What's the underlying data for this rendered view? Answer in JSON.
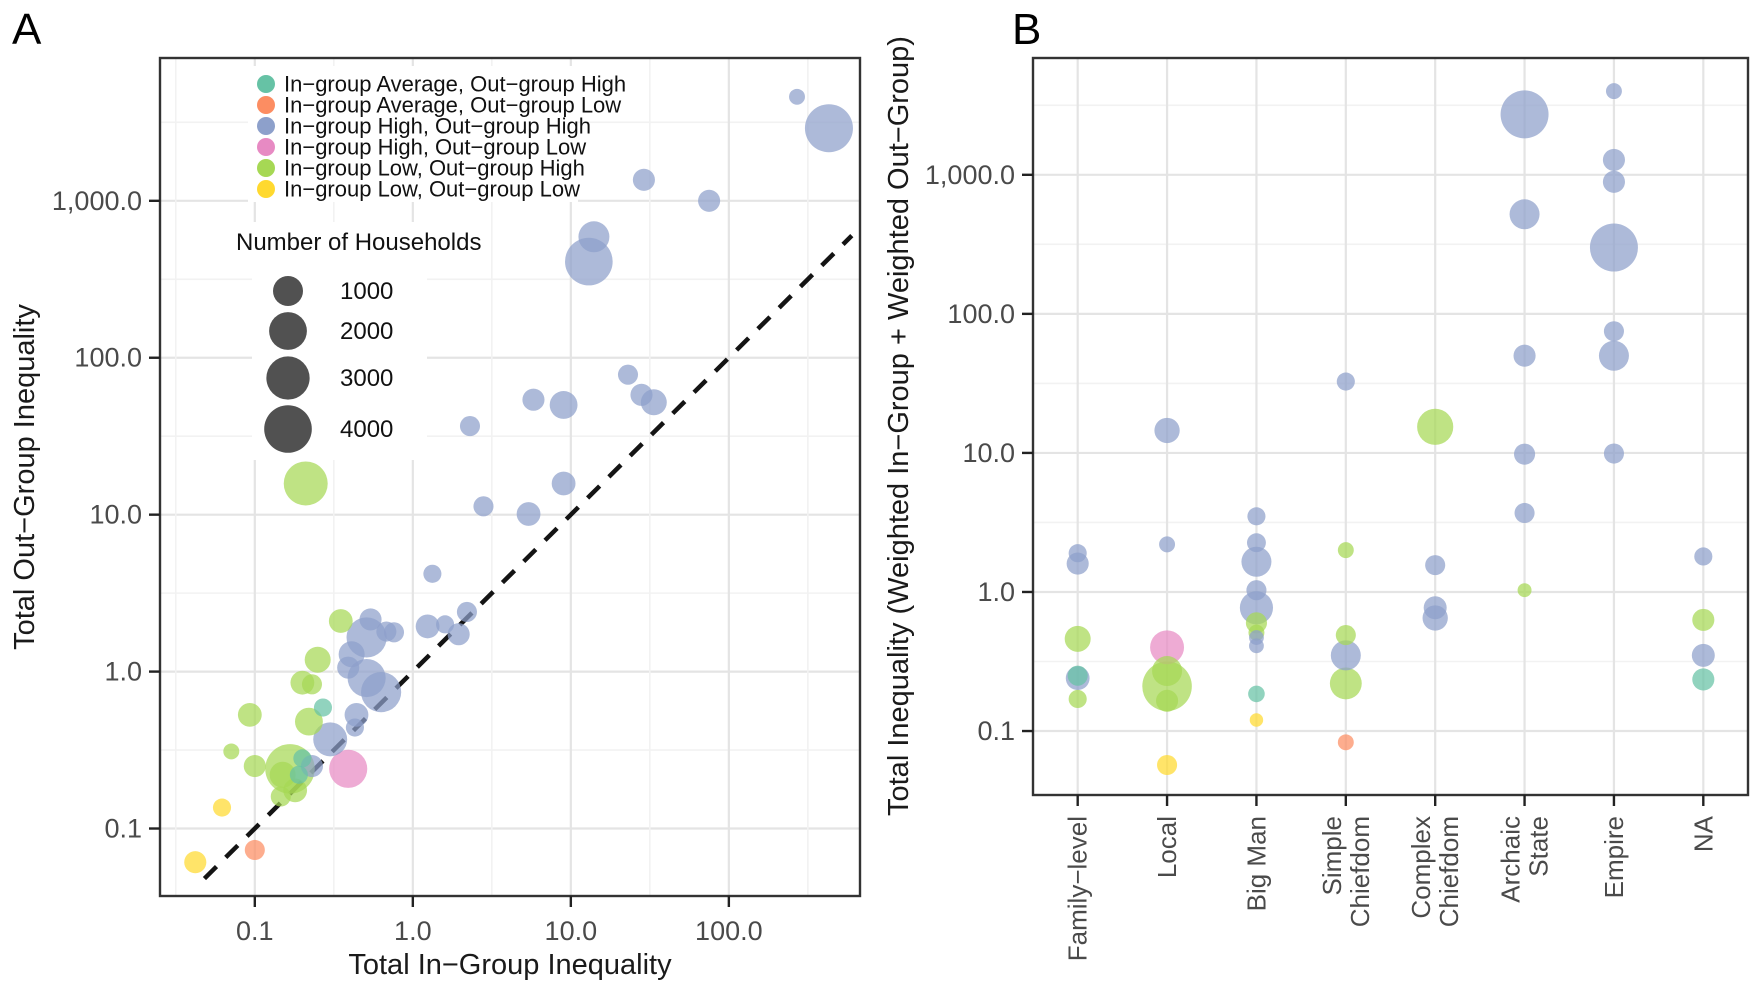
{
  "figure": {
    "panel_a_label": "A",
    "panel_b_label": "B"
  },
  "colors": {
    "background": "#ffffff",
    "panel_border": "#333333",
    "grid_major": "#e4e4e4",
    "grid_minor": "#f2f2f2",
    "axis_text": "#4a4a4a",
    "identity_line": "#141414",
    "size_legend_dot": "#424242",
    "groups": {
      "AH": "#66C2A5",
      "AL": "#FC8D62",
      "HH": "#8DA0CB",
      "HL": "#E78AC3",
      "LH": "#A6D854",
      "LL": "#FFD92F"
    }
  },
  "legend": {
    "entries": [
      {
        "key": "AH",
        "label": "In−group Average, Out−group High"
      },
      {
        "key": "AL",
        "label": "In−group Average, Out−group Low"
      },
      {
        "key": "HH",
        "label": "In−group High, Out−group High"
      },
      {
        "key": "HL",
        "label": "In−group High, Out−group Low"
      },
      {
        "key": "LH",
        "label": "In−group Low, Out−group High"
      },
      {
        "key": "LL",
        "label": "In−group Low, Out−group Low"
      }
    ]
  },
  "size_legend": {
    "title": "Number of Households",
    "values": [
      1000,
      2000,
      3000,
      4000
    ],
    "labels": [
      "1000",
      "2000",
      "3000",
      "4000"
    ]
  },
  "chart_data": [
    {
      "type": "scatter",
      "name": "panel-A",
      "xlabel": "Total In−Group Inequality",
      "ylabel": "Total Out−Group Inequality",
      "xscale": "log",
      "yscale": "log",
      "xlim": [
        0.025,
        680
      ],
      "ylim": [
        0.037,
        8100
      ],
      "xticks": {
        "values": [
          0.1,
          1,
          10,
          100
        ],
        "labels": [
          "0.1",
          "1.0",
          "10.0",
          "100.0"
        ]
      },
      "yticks": {
        "values": [
          0.1,
          1,
          10,
          100,
          1000
        ],
        "labels": [
          "0.1",
          "1.0",
          "10.0",
          "100.0",
          "1,000.0"
        ]
      },
      "identity_line": {
        "shown": true,
        "style": "dashed",
        "from": 0.048,
        "to": 600
      },
      "grid": "major+minor",
      "legend_position": "inside-top-left",
      "points": [
        {
          "x": 29,
          "y": 1360,
          "n": 400,
          "g": "HH"
        },
        {
          "x": 75,
          "y": 1000,
          "n": 400,
          "g": "HH"
        },
        {
          "x": 270,
          "y": 4600,
          "n": 150,
          "g": "HH"
        },
        {
          "x": 430,
          "y": 2900,
          "n": 4100,
          "g": "HH"
        },
        {
          "x": 14,
          "y": 590,
          "n": 1100,
          "g": "HH"
        },
        {
          "x": 13,
          "y": 410,
          "n": 4000,
          "g": "HH"
        },
        {
          "x": 23,
          "y": 78,
          "n": 300,
          "g": "HH"
        },
        {
          "x": 28,
          "y": 58,
          "n": 400,
          "g": "HH"
        },
        {
          "x": 33.5,
          "y": 52,
          "n": 650,
          "g": "HH"
        },
        {
          "x": 5.8,
          "y": 54,
          "n": 400,
          "g": "HH"
        },
        {
          "x": 9,
          "y": 50,
          "n": 800,
          "g": "HH"
        },
        {
          "x": 9,
          "y": 15.8,
          "n": 500,
          "g": "HH"
        },
        {
          "x": 5.4,
          "y": 10.1,
          "n": 500,
          "g": "HH"
        },
        {
          "x": 2.8,
          "y": 11.3,
          "n": 300,
          "g": "HH"
        },
        {
          "x": 2.3,
          "y": 36.7,
          "n": 300,
          "g": "HH"
        },
        {
          "x": 1.33,
          "y": 4.2,
          "n": 220,
          "g": "HH"
        },
        {
          "x": 2.2,
          "y": 2.4,
          "n": 300,
          "g": "HH"
        },
        {
          "x": 1.6,
          "y": 2.0,
          "n": 220,
          "g": "HH"
        },
        {
          "x": 1.95,
          "y": 1.73,
          "n": 400,
          "g": "HH"
        },
        {
          "x": 1.24,
          "y": 1.94,
          "n": 500,
          "g": "HH"
        },
        {
          "x": 0.54,
          "y": 2.15,
          "n": 400,
          "g": "HH"
        },
        {
          "x": 0.68,
          "y": 1.8,
          "n": 300,
          "g": "HH"
        },
        {
          "x": 0.76,
          "y": 1.78,
          "n": 300,
          "g": "HH"
        },
        {
          "x": 0.51,
          "y": 1.65,
          "n": 2400,
          "g": "HH"
        },
        {
          "x": 0.41,
          "y": 1.29,
          "n": 650,
          "g": "HH"
        },
        {
          "x": 0.39,
          "y": 1.06,
          "n": 400,
          "g": "HH"
        },
        {
          "x": 0.51,
          "y": 0.91,
          "n": 2050,
          "g": "HH"
        },
        {
          "x": 0.63,
          "y": 0.74,
          "n": 2400,
          "g": "HH"
        },
        {
          "x": 0.44,
          "y": 0.53,
          "n": 500,
          "g": "HH"
        },
        {
          "x": 0.43,
          "y": 0.44,
          "n": 220,
          "g": "HH"
        },
        {
          "x": 0.3,
          "y": 0.37,
          "n": 1450,
          "g": "HH"
        },
        {
          "x": 0.23,
          "y": 0.25,
          "n": 400,
          "g": "HH"
        },
        {
          "x": 0.21,
          "y": 15.8,
          "n": 3150,
          "g": "LH"
        },
        {
          "x": 0.35,
          "y": 2.1,
          "n": 500,
          "g": "LH"
        },
        {
          "x": 0.25,
          "y": 1.19,
          "n": 650,
          "g": "LH"
        },
        {
          "x": 0.2,
          "y": 0.85,
          "n": 500,
          "g": "LH"
        },
        {
          "x": 0.23,
          "y": 0.83,
          "n": 300,
          "g": "LH"
        },
        {
          "x": 0.093,
          "y": 0.53,
          "n": 500,
          "g": "LH"
        },
        {
          "x": 0.22,
          "y": 0.48,
          "n": 800,
          "g": "LH"
        },
        {
          "x": 0.071,
          "y": 0.31,
          "n": 150,
          "g": "LH"
        },
        {
          "x": 0.1,
          "y": 0.25,
          "n": 400,
          "g": "LH"
        },
        {
          "x": 0.167,
          "y": 0.24,
          "n": 4500,
          "g": "LH"
        },
        {
          "x": 0.15,
          "y": 0.22,
          "n": 650,
          "g": "LH"
        },
        {
          "x": 0.18,
          "y": 0.175,
          "n": 500,
          "g": "LH"
        },
        {
          "x": 0.146,
          "y": 0.16,
          "n": 300,
          "g": "LH"
        },
        {
          "x": 0.27,
          "y": 0.59,
          "n": 220,
          "g": "AH"
        },
        {
          "x": 0.2,
          "y": 0.28,
          "n": 220,
          "g": "AH"
        },
        {
          "x": 0.19,
          "y": 0.22,
          "n": 220,
          "g": "AH"
        },
        {
          "x": 0.39,
          "y": 0.24,
          "n": 2050,
          "g": "HL"
        },
        {
          "x": 0.042,
          "y": 0.061,
          "n": 400,
          "g": "LL"
        },
        {
          "x": 0.062,
          "y": 0.136,
          "n": 220,
          "g": "LL"
        },
        {
          "x": 0.1,
          "y": 0.073,
          "n": 300,
          "g": "AL"
        }
      ]
    },
    {
      "type": "scatter-categorical",
      "name": "panel-B",
      "xlabel": "",
      "ylabel": "Total Inequality (Weighted In−Group + Weighted Out−Group)",
      "yscale": "log",
      "ylim": [
        0.035,
        6900
      ],
      "yticks": {
        "values": [
          0.1,
          1,
          10,
          100,
          1000
        ],
        "labels": [
          "0.1",
          "1.0",
          "10.0",
          "100.0",
          "1,000.0"
        ]
      },
      "categories": [
        "Family−level",
        "Local",
        "Big Man",
        "Simple Chiefdom",
        "Complex Chiefdom",
        "Archaic State",
        "Empire",
        "NA"
      ],
      "category_label_lines": [
        [
          "Family−level"
        ],
        [
          "Local"
        ],
        [
          "Big Man"
        ],
        [
          "Simple",
          "Chiefdom"
        ],
        [
          "Complex",
          "Chiefdom"
        ],
        [
          "Archaic",
          "State"
        ],
        [
          "Empire"
        ],
        [
          "NA"
        ]
      ],
      "grid": "major+minor",
      "points": [
        {
          "c": 0,
          "y": 1.9,
          "n": 220,
          "g": "HH"
        },
        {
          "c": 0,
          "y": 1.6,
          "n": 400,
          "g": "HH"
        },
        {
          "c": 0,
          "y": 0.46,
          "n": 650,
          "g": "LH"
        },
        {
          "c": 0,
          "y": 0.25,
          "n": 300,
          "g": "AH"
        },
        {
          "c": 0,
          "y": 0.24,
          "n": 500,
          "g": "HH"
        },
        {
          "c": 0,
          "y": 0.17,
          "n": 220,
          "g": "LH"
        },
        {
          "c": 1,
          "y": 14.5,
          "n": 600,
          "g": "HH"
        },
        {
          "c": 1,
          "y": 2.2,
          "n": 150,
          "g": "HH"
        },
        {
          "c": 1,
          "y": 0.4,
          "n": 1450,
          "g": "HL"
        },
        {
          "c": 1,
          "y": 0.27,
          "n": 1000,
          "g": "LH"
        },
        {
          "c": 1,
          "y": 0.21,
          "n": 4500,
          "g": "LH"
        },
        {
          "c": 1,
          "y": 0.165,
          "n": 400,
          "g": "LH"
        },
        {
          "c": 1,
          "y": 0.057,
          "n": 300,
          "g": "LL"
        },
        {
          "c": 2,
          "y": 3.5,
          "n": 220,
          "g": "HH"
        },
        {
          "c": 2,
          "y": 2.26,
          "n": 250,
          "g": "HH"
        },
        {
          "c": 2,
          "y": 1.65,
          "n": 1000,
          "g": "HH"
        },
        {
          "c": 2,
          "y": 1.03,
          "n": 300,
          "g": "HH"
        },
        {
          "c": 2,
          "y": 0.77,
          "n": 1350,
          "g": "HH"
        },
        {
          "c": 2,
          "y": 0.6,
          "n": 350,
          "g": "LH"
        },
        {
          "c": 2,
          "y": 0.51,
          "n": 150,
          "g": "LH"
        },
        {
          "c": 2,
          "y": 0.47,
          "n": 120,
          "g": "HH"
        },
        {
          "c": 2,
          "y": 0.41,
          "n": 120,
          "g": "HH"
        },
        {
          "c": 2,
          "y": 0.185,
          "n": 170,
          "g": "AH"
        },
        {
          "c": 2,
          "y": 0.12,
          "n": 90,
          "g": "LL"
        },
        {
          "c": 3,
          "y": 32.6,
          "n": 220,
          "g": "HH"
        },
        {
          "c": 3,
          "y": 2.0,
          "n": 150,
          "g": "LH"
        },
        {
          "c": 3,
          "y": 0.49,
          "n": 300,
          "g": "LH"
        },
        {
          "c": 3,
          "y": 0.35,
          "n": 1000,
          "g": "HH"
        },
        {
          "c": 3,
          "y": 0.22,
          "n": 1200,
          "g": "LH"
        },
        {
          "c": 3,
          "y": 0.083,
          "n": 150,
          "g": "AL"
        },
        {
          "c": 4,
          "y": 15.4,
          "n": 1750,
          "g": "LH"
        },
        {
          "c": 4,
          "y": 1.56,
          "n": 300,
          "g": "HH"
        },
        {
          "c": 4,
          "y": 0.77,
          "n": 450,
          "g": "HH"
        },
        {
          "c": 4,
          "y": 0.65,
          "n": 600,
          "g": "HH"
        },
        {
          "c": 5,
          "y": 2720,
          "n": 4100,
          "g": "HH"
        },
        {
          "c": 5,
          "y": 520,
          "n": 1000,
          "g": "HH"
        },
        {
          "c": 5,
          "y": 50,
          "n": 400,
          "g": "HH"
        },
        {
          "c": 5,
          "y": 9.8,
          "n": 350,
          "g": "HH"
        },
        {
          "c": 5,
          "y": 3.7,
          "n": 300,
          "g": "HH"
        },
        {
          "c": 5,
          "y": 1.03,
          "n": 100,
          "g": "LH"
        },
        {
          "c": 6,
          "y": 4000,
          "n": 150,
          "g": "HH"
        },
        {
          "c": 6,
          "y": 1280,
          "n": 400,
          "g": "HH"
        },
        {
          "c": 6,
          "y": 890,
          "n": 400,
          "g": "HH"
        },
        {
          "c": 6,
          "y": 300,
          "n": 4100,
          "g": "HH"
        },
        {
          "c": 6,
          "y": 75,
          "n": 300,
          "g": "HH"
        },
        {
          "c": 6,
          "y": 50,
          "n": 1000,
          "g": "HH"
        },
        {
          "c": 6,
          "y": 9.9,
          "n": 300,
          "g": "HH"
        },
        {
          "c": 7,
          "y": 1.8,
          "n": 220,
          "g": "HH"
        },
        {
          "c": 7,
          "y": 0.63,
          "n": 400,
          "g": "LH"
        },
        {
          "c": 7,
          "y": 0.35,
          "n": 450,
          "g": "HH"
        },
        {
          "c": 7,
          "y": 0.235,
          "n": 400,
          "g": "AH"
        }
      ]
    }
  ]
}
